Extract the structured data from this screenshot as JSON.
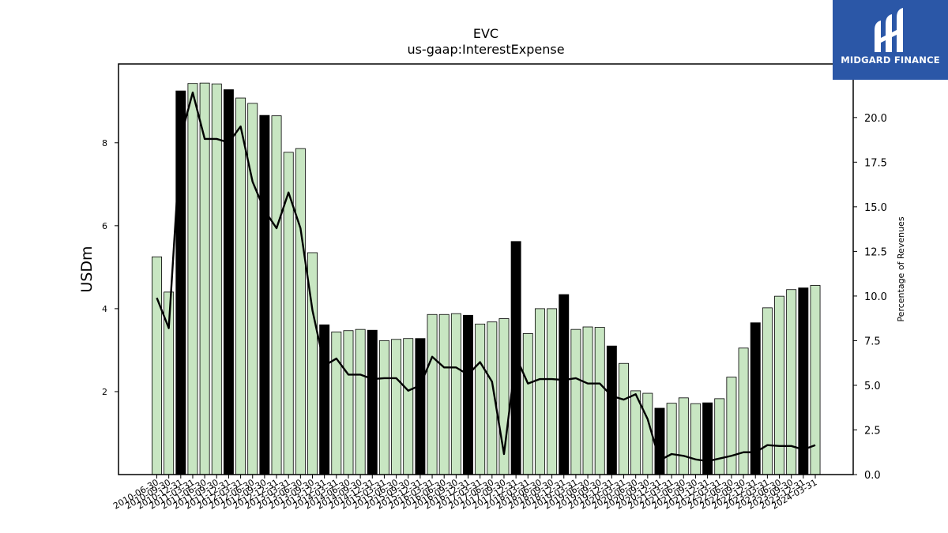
{
  "brand": {
    "name": "MIDGARD FINANCE",
    "color": "#2b57a7"
  },
  "chart_data": {
    "type": "bar",
    "title": "EVC",
    "subtitle": "us-gaap:InterestExpense",
    "ylabel": "USDm",
    "y2label": "Percentage of Revenues",
    "ylim": [
      0,
      9.9
    ],
    "y2lim": [
      0,
      23
    ],
    "yticks": [
      2,
      4,
      6,
      8
    ],
    "y2ticks": [
      "0.0",
      "2.5",
      "5.0",
      "7.5",
      "10.0",
      "12.5",
      "15.0",
      "17.5",
      "20.0"
    ],
    "colors": {
      "quarter_bar": "#c8e6c2",
      "annual_bar": "#000000",
      "line": "#000000"
    },
    "categories": [
      "2010-06-30",
      "2010-09-30",
      "2010-12-31",
      "2011-03-31",
      "2011-06-30",
      "2011-09-30",
      "2011-12-31",
      "2012-03-31",
      "2012-06-30",
      "2012-09-30",
      "2012-12-31",
      "2013-03-31",
      "2013-06-30",
      "2013-09-30",
      "2013-12-31",
      "2014-03-31",
      "2014-06-30",
      "2014-09-30",
      "2014-12-31",
      "2015-03-31",
      "2015-06-30",
      "2015-09-30",
      "2015-12-31",
      "2016-03-31",
      "2016-06-30",
      "2016-09-30",
      "2016-12-31",
      "2017-03-31",
      "2017-06-30",
      "2017-09-30",
      "2017-12-31",
      "2018-03-31",
      "2018-06-30",
      "2018-09-30",
      "2018-12-31",
      "2019-03-31",
      "2019-06-30",
      "2019-09-30",
      "2019-12-31",
      "2020-03-31",
      "2020-06-30",
      "2020-09-30",
      "2020-12-31",
      "2021-03-31",
      "2021-06-30",
      "2021-09-30",
      "2021-12-31",
      "2022-03-31",
      "2022-06-30",
      "2022-09-30",
      "2022-12-31",
      "2023-03-31",
      "2023-06-30",
      "2023-09-30",
      "2023-12-31",
      "2024-03-31"
    ],
    "xtick_labels": [
      "2010-06-30",
      "2010-09-30",
      "2010-12-31",
      "2011-03-31",
      "2011-06-30",
      "2011-09-30",
      "2011-12-31",
      "2012-03-31",
      "2012-06-30",
      "2012-09-30",
      "2012-12-31",
      "2013-03-31",
      "2013-06-30",
      "2013-09-30",
      "2013-12-31",
      "2014-03-31",
      "2014-06-30",
      "2014-09-30",
      "2014-12-31",
      "2015-03-31",
      "2015-06-30",
      "2015-09-30",
      "2015-12-31",
      "2016-03-31",
      "2016-06-30",
      "2016-09-30",
      "2016-12-31",
      "2017-03-31",
      "2017-06-30",
      "2017-09-30",
      "2017-12-31",
      "2018-03-31",
      "2018-06-30",
      "2018-09-30",
      "2018-12-31",
      "2019-03-31",
      "2019-06-30",
      "2019-09-30",
      "2019-12-31",
      "2020-03-31",
      "2020-06-30",
      "2020-09-30",
      "2020-12-31",
      "2021-03-31",
      "2021-06-30",
      "2021-09-30",
      "2021-12-31",
      "2022-03-31",
      "2022-06-30",
      "2022-09-30",
      "2022-12-31",
      "2023-03-31",
      "2023-06-30",
      "2023-09-30",
      "2023-12-31",
      "2024-03-31"
    ],
    "series": [
      {
        "kind": "bar",
        "axis": "left",
        "values": [
          5.25,
          4.4,
          9.25,
          9.43,
          9.44,
          9.42,
          9.28,
          9.08,
          8.95,
          8.66,
          8.65,
          7.77,
          7.86,
          5.35,
          3.61,
          3.44,
          3.47,
          3.5,
          3.48,
          3.23,
          3.26,
          3.28,
          3.28,
          3.86,
          3.86,
          3.88,
          3.84,
          3.63,
          3.68,
          3.76,
          5.62,
          3.4,
          4.0,
          4.0,
          4.34,
          3.5,
          3.56,
          3.55,
          3.1,
          2.68,
          2.02,
          1.96,
          1.6,
          1.72,
          1.85,
          1.71,
          1.73,
          1.83,
          2.35,
          3.05,
          3.66,
          4.02,
          4.3,
          4.46,
          4.5,
          4.56
        ],
        "annual": [
          false,
          false,
          true,
          false,
          false,
          false,
          true,
          false,
          false,
          true,
          false,
          false,
          false,
          false,
          true,
          false,
          false,
          false,
          true,
          false,
          false,
          false,
          true,
          false,
          false,
          false,
          true,
          false,
          false,
          false,
          true,
          false,
          false,
          false,
          true,
          false,
          false,
          false,
          true,
          false,
          false,
          false,
          true,
          false,
          false,
          false,
          true,
          false,
          false,
          false,
          true,
          false,
          false,
          false,
          true,
          false
        ]
      },
      {
        "kind": "line",
        "axis": "right",
        "values": [
          9.9,
          8.2,
          18.9,
          21.4,
          18.8,
          18.8,
          18.6,
          19.5,
          16.4,
          14.8,
          13.8,
          15.8,
          13.8,
          9.2,
          6.1,
          6.5,
          5.6,
          5.6,
          5.35,
          5.4,
          5.4,
          4.7,
          5.0,
          6.6,
          6.0,
          6.0,
          5.6,
          6.3,
          5.2,
          1.15,
          6.6,
          5.1,
          5.35,
          5.35,
          5.3,
          5.4,
          5.1,
          5.1,
          4.4,
          4.2,
          4.5,
          3.1,
          0.8,
          1.15,
          1.05,
          0.85,
          0.75,
          0.9,
          1.05,
          1.25,
          1.25,
          1.65,
          1.6,
          1.6,
          1.4,
          1.65
        ]
      }
    ]
  }
}
